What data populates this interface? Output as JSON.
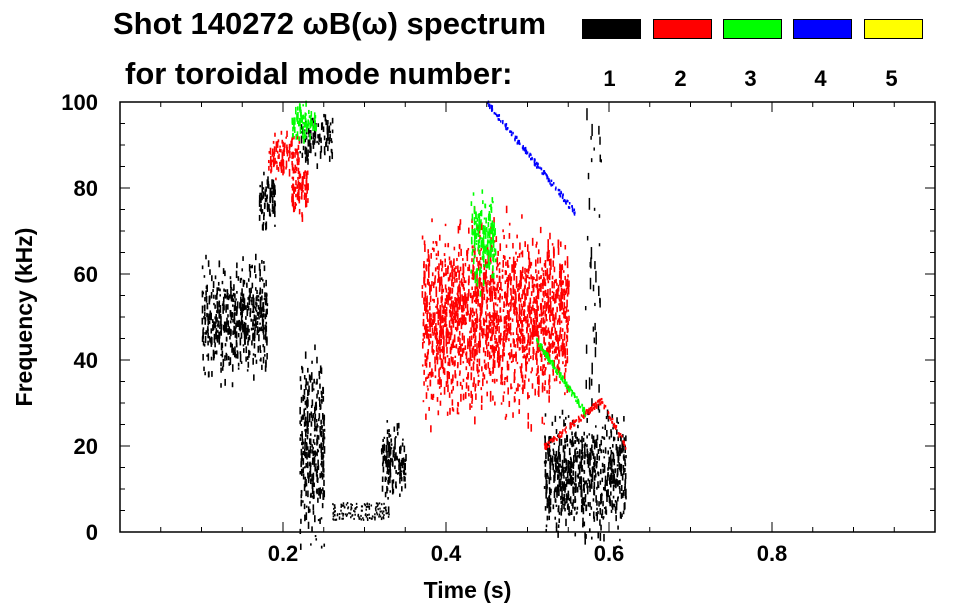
{
  "chart_data": {
    "type": "scatter",
    "title": "Shot 140272 ωB(ω) spectrum",
    "subtitle": "for toroidal mode number:",
    "xlabel": "Time (s)",
    "ylabel": "Frequency (kHz)",
    "xlim": [
      0.0,
      1.0
    ],
    "ylim": [
      0,
      100
    ],
    "x_ticks": [
      0.2,
      0.4,
      0.6,
      0.8
    ],
    "x_tick_labels": [
      "0.2",
      "0.4",
      "0.6",
      "0.8"
    ],
    "y_ticks": [
      0,
      20,
      40,
      60,
      80,
      100
    ],
    "y_tick_labels": [
      "0",
      "20",
      "40",
      "60",
      "80",
      "100"
    ],
    "legend": [
      {
        "label": "1",
        "color": "#000000"
      },
      {
        "label": "2",
        "color": "#ff0000"
      },
      {
        "label": "3",
        "color": "#00ff00"
      },
      {
        "label": "4",
        "color": "#0000ff"
      },
      {
        "label": "5",
        "color": "#ffff00"
      }
    ],
    "features": [
      {
        "mode": 1,
        "t_start": 0.1,
        "t_end": 0.18,
        "f_low": 40,
        "f_high": 62,
        "f_center": 50,
        "type": "blob"
      },
      {
        "mode": 1,
        "t_start": 0.17,
        "t_end": 0.19,
        "f_low": 72,
        "f_high": 83,
        "f_center": 78,
        "type": "blob"
      },
      {
        "mode": 1,
        "t_start": 0.22,
        "t_end": 0.26,
        "f_low": 88,
        "f_high": 97,
        "f_center": 92,
        "type": "blob"
      },
      {
        "mode": 1,
        "t_start": 0.22,
        "t_end": 0.25,
        "f_low": 5,
        "f_high": 40,
        "f_center": 20,
        "type": "blob"
      },
      {
        "mode": 1,
        "t_start": 0.26,
        "t_end": 0.33,
        "f_low": 3,
        "f_high": 7,
        "f_center": 5,
        "type": "band"
      },
      {
        "mode": 1,
        "t_start": 0.32,
        "t_end": 0.35,
        "f_low": 10,
        "f_high": 25,
        "f_center": 17,
        "type": "blob"
      },
      {
        "mode": 1,
        "t_start": 0.52,
        "t_end": 0.62,
        "f_low": 5,
        "f_high": 28,
        "f_center": 14,
        "type": "blob"
      },
      {
        "mode": 1,
        "t_start": 0.57,
        "t_end": 0.59,
        "f_low": 30,
        "f_high": 100,
        "f_center": 60,
        "type": "streak"
      },
      {
        "mode": 2,
        "t_start": 0.18,
        "t_end": 0.22,
        "f_low": 83,
        "f_high": 92,
        "f_center": 88,
        "type": "blob"
      },
      {
        "mode": 2,
        "t_start": 0.21,
        "t_end": 0.23,
        "f_low": 75,
        "f_high": 85,
        "f_center": 80,
        "type": "blob"
      },
      {
        "mode": 2,
        "t_start": 0.37,
        "t_end": 0.55,
        "f_low": 30,
        "f_high": 65,
        "f_center": 50,
        "type": "blob"
      },
      {
        "mode": 2,
        "t_start": 0.52,
        "t_end": 0.62,
        "f_low": 20,
        "f_high": 32,
        "f_center": 26,
        "type": "chirp"
      },
      {
        "mode": 3,
        "t_start": 0.21,
        "t_end": 0.24,
        "f_low": 92,
        "f_high": 100,
        "f_center": 96,
        "type": "blob"
      },
      {
        "mode": 3,
        "t_start": 0.43,
        "t_end": 0.46,
        "f_low": 60,
        "f_high": 78,
        "f_center": 68,
        "type": "blob"
      },
      {
        "mode": 3,
        "t_start": 0.51,
        "t_end": 0.57,
        "f_low": 28,
        "f_high": 45,
        "f_center": 36,
        "type": "chirp"
      },
      {
        "mode": 4,
        "t_start": 0.45,
        "t_end": 0.56,
        "f_low": 74,
        "f_high": 100,
        "f_center": 88,
        "type": "chirp"
      }
    ]
  }
}
